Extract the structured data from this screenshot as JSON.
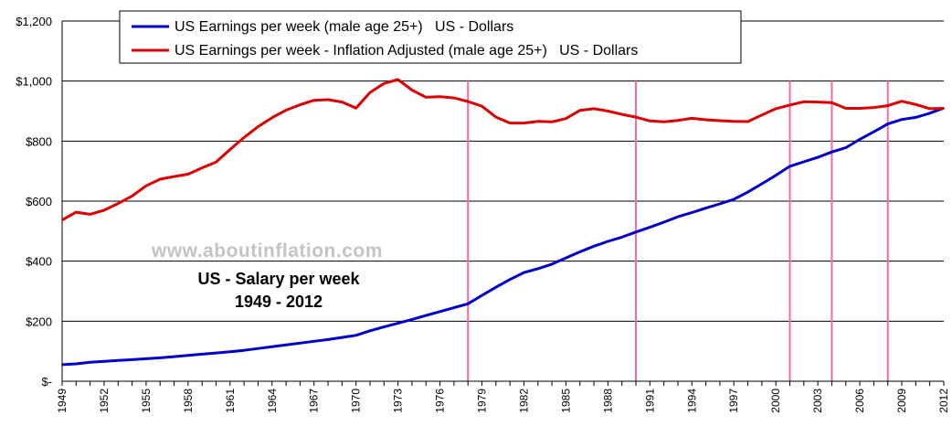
{
  "chart_data": {
    "type": "line",
    "title": "US - Salary per week",
    "subtitle": "1949 - 2012",
    "watermark": "www.aboutinflation.com",
    "xlabel": "",
    "ylabel": "",
    "xlim": [
      1949,
      2012
    ],
    "ylim": [
      0,
      1200
    ],
    "grid": true,
    "legend_position": "top",
    "y_tick_labels": [
      "$-",
      "$200",
      "$400",
      "$600",
      "$800",
      "$1,000",
      "$1,200"
    ],
    "y_tick_values": [
      0,
      200,
      400,
      600,
      800,
      1000,
      1200
    ],
    "x_tick_labels": [
      "1949",
      "1952",
      "1955",
      "1958",
      "1961",
      "1964",
      "1967",
      "1970",
      "1973",
      "1976",
      "1979",
      "1982",
      "1985",
      "1988",
      "1991",
      "1994",
      "1997",
      "2000",
      "2003",
      "2006",
      "2009",
      "2012"
    ],
    "recession_markers": [
      1978,
      1990,
      2001,
      2004,
      2008
    ],
    "x": [
      1949,
      1950,
      1951,
      1952,
      1953,
      1954,
      1955,
      1956,
      1957,
      1958,
      1959,
      1960,
      1961,
      1962,
      1963,
      1964,
      1965,
      1966,
      1967,
      1968,
      1969,
      1970,
      1971,
      1972,
      1973,
      1974,
      1975,
      1976,
      1977,
      1978,
      1979,
      1980,
      1981,
      1982,
      1983,
      1984,
      1985,
      1986,
      1987,
      1988,
      1989,
      1990,
      1991,
      1992,
      1993,
      1994,
      1995,
      1996,
      1997,
      1998,
      1999,
      2000,
      2001,
      2002,
      2003,
      2004,
      2005,
      2006,
      2007,
      2008,
      2009,
      2010,
      2011,
      2012
    ],
    "series": [
      {
        "name": "US Earnings per week (male age 25+)   US - Dollars",
        "color": "#0000cc",
        "values": [
          55,
          58,
          63,
          66,
          69,
          72,
          75,
          78,
          82,
          86,
          90,
          94,
          98,
          103,
          109,
          115,
          121,
          127,
          133,
          139,
          146,
          153,
          168,
          181,
          193,
          206,
          219,
          232,
          245,
          258,
          286,
          313,
          339,
          362,
          375,
          390,
          411,
          431,
          450,
          466,
          480,
          497,
          513,
          530,
          548,
          562,
          577,
          591,
          606,
          630,
          658,
          686,
          716,
          731,
          746,
          764,
          778,
          806,
          831,
          857,
          872,
          879,
          893,
          910
        ]
      },
      {
        "name": "US Earnings per week - Inflation Adjusted (male age 25+)   US - Dollars",
        "color": "#dd0000",
        "values": [
          537,
          563,
          556,
          570,
          592,
          617,
          651,
          673,
          682,
          690,
          711,
          730,
          772,
          812,
          848,
          878,
          903,
          921,
          936,
          938,
          930,
          910,
          962,
          992,
          1005,
          970,
          946,
          948,
          944,
          932,
          916,
          880,
          860,
          860,
          866,
          864,
          875,
          902,
          908,
          900,
          889,
          880,
          867,
          864,
          869,
          876,
          871,
          868,
          866,
          865,
          887,
          908,
          920,
          931,
          930,
          928,
          909,
          909,
          912,
          918,
          933,
          922,
          908,
          909
        ]
      }
    ]
  }
}
